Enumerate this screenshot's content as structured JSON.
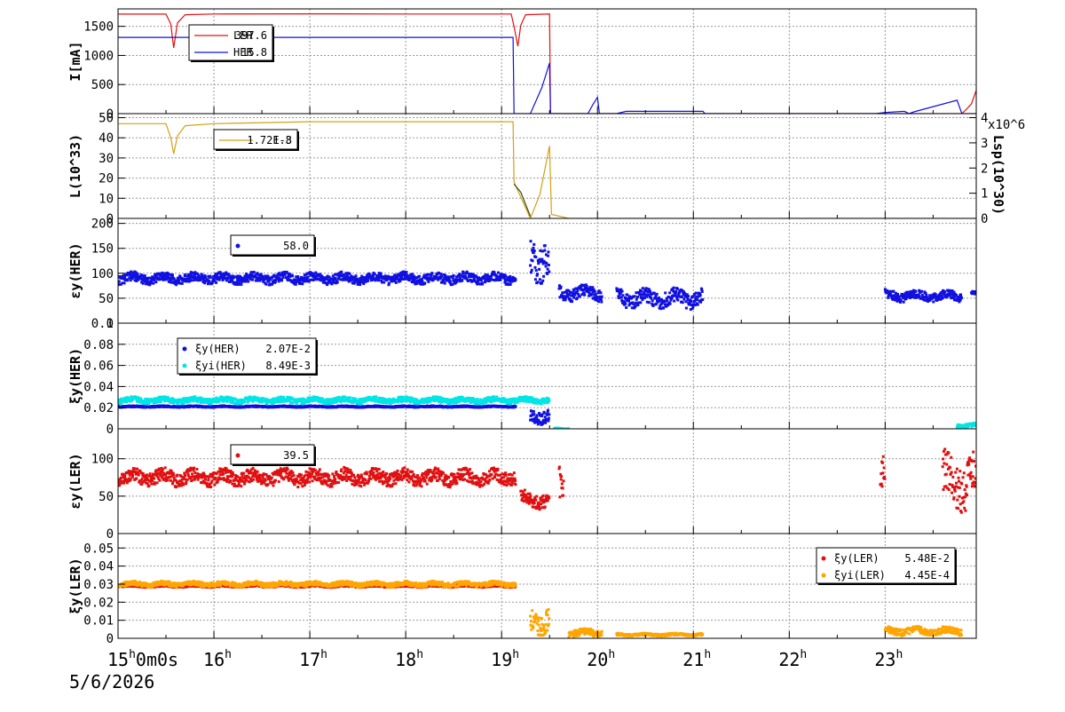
{
  "x_axis": {
    "tick_labels": [
      {
        "hour": 15,
        "label": "15",
        "suffix": "0m0s",
        "sup": "h"
      },
      {
        "hour": 16,
        "label": "16",
        "sup": "h"
      },
      {
        "hour": 17,
        "label": "17",
        "sup": "h"
      },
      {
        "hour": 18,
        "label": "18",
        "sup": "h"
      },
      {
        "hour": 19,
        "label": "19",
        "sup": "h"
      },
      {
        "hour": 20,
        "label": "20",
        "sup": "h"
      },
      {
        "hour": 21,
        "label": "21",
        "sup": "h"
      },
      {
        "hour": 22,
        "label": "22",
        "sup": "h"
      },
      {
        "hour": 23,
        "label": "23",
        "sup": "h"
      }
    ],
    "date": "5/6/2026",
    "range_hours": [
      15.0,
      23.95
    ]
  },
  "colors": {
    "red": "#e01010",
    "blue": "#1010e0",
    "gold": "#d4a017",
    "cyan": "#00e5e5",
    "orange": "#ffa500",
    "dark_green": "#2a4a10"
  },
  "chart_data": [
    {
      "type": "line",
      "ylabel": "I[mA]",
      "ylim": [
        0,
        1800
      ],
      "yticks": [
        0,
        500,
        1000,
        1500
      ],
      "grid": true,
      "legend": {
        "placement": "top-left",
        "entries": [
          {
            "name": "LER",
            "value": "397.6",
            "color": "#e01010"
          },
          {
            "name": "HER",
            "value": "15.8",
            "color": "#1010e0"
          }
        ]
      },
      "series": [
        {
          "name": "LER",
          "color": "#e01010",
          "points": [
            [
              15.0,
              1710
            ],
            [
              15.5,
              1710
            ],
            [
              15.55,
              1540
            ],
            [
              15.58,
              1130
            ],
            [
              15.62,
              1560
            ],
            [
              15.7,
              1700
            ],
            [
              16.0,
              1712
            ],
            [
              17.0,
              1714
            ],
            [
              18.0,
              1712
            ],
            [
              19.0,
              1712
            ],
            [
              19.1,
              1712
            ],
            [
              19.13,
              1500
            ],
            [
              19.17,
              1160
            ],
            [
              19.2,
              1520
            ],
            [
              19.25,
              1700
            ],
            [
              19.5,
              1712
            ],
            [
              19.51,
              0
            ],
            [
              20.0,
              0
            ],
            [
              21.0,
              0
            ],
            [
              22.0,
              0
            ],
            [
              22.95,
              0
            ],
            [
              23.8,
              0
            ],
            [
              23.85,
              80
            ],
            [
              23.9,
              170
            ],
            [
              23.95,
              400
            ]
          ]
        },
        {
          "name": "HER",
          "color": "#1010e0",
          "points": [
            [
              15.0,
              1310
            ],
            [
              19.12,
              1310
            ],
            [
              19.13,
              0
            ],
            [
              19.3,
              0
            ],
            [
              19.42,
              450
            ],
            [
              19.5,
              870
            ],
            [
              19.51,
              0
            ],
            [
              19.9,
              0
            ],
            [
              19.95,
              150
            ],
            [
              20.0,
              280
            ],
            [
              20.02,
              0
            ],
            [
              20.2,
              0
            ],
            [
              20.3,
              40
            ],
            [
              21.1,
              40
            ],
            [
              21.12,
              0
            ],
            [
              22.9,
              0
            ],
            [
              23.0,
              20
            ],
            [
              23.2,
              40
            ],
            [
              23.25,
              0
            ],
            [
              23.3,
              30
            ],
            [
              23.75,
              230
            ],
            [
              23.8,
              0
            ],
            [
              23.95,
              0
            ]
          ]
        }
      ]
    },
    {
      "type": "line",
      "ylabel": "L(10^33)",
      "ylim": [
        0,
        52
      ],
      "yticks": [
        0,
        10,
        20,
        30,
        40,
        50
      ],
      "right_axis": {
        "label": "Lsp(10^30)",
        "multiplier": "x10^6",
        "ylim": [
          0,
          4.16
        ],
        "yticks": [
          0,
          1,
          2,
          3,
          4
        ]
      },
      "grid": true,
      "legend": {
        "placement": "top-left",
        "entries": [
          {
            "name": "",
            "value": "1.72E-3",
            "overlap": "1.8",
            "color": "#d4a017"
          }
        ]
      },
      "series": [
        {
          "name": "L",
          "color": "#d4a017",
          "points": [
            [
              15.0,
              47
            ],
            [
              15.5,
              47
            ],
            [
              15.55,
              40
            ],
            [
              15.58,
              32
            ],
            [
              15.62,
              41
            ],
            [
              15.7,
              46
            ],
            [
              16.0,
              47
            ],
            [
              17.0,
              48
            ],
            [
              18.0,
              48
            ],
            [
              19.0,
              48
            ],
            [
              19.12,
              48
            ],
            [
              19.13,
              18
            ],
            [
              19.3,
              0
            ],
            [
              19.4,
              12
            ],
            [
              19.5,
              36
            ],
            [
              19.52,
              2
            ],
            [
              19.7,
              0
            ],
            [
              20.0,
              0
            ],
            [
              22.0,
              0
            ],
            [
              23.95,
              0
            ]
          ]
        },
        {
          "name": "Lsp",
          "color": "#2a4a10",
          "points": [
            [
              19.13,
              17
            ],
            [
              19.2,
              13
            ],
            [
              19.3,
              1
            ]
          ]
        }
      ]
    },
    {
      "type": "scatter",
      "ylabel": "εy(HER)",
      "ylim": [
        0,
        210
      ],
      "yticks": [
        0,
        50,
        100,
        150,
        200
      ],
      "grid": true,
      "legend": {
        "placement": "top-left",
        "entries": [
          {
            "name": "",
            "value": "58.0",
            "color": "#1010e0"
          }
        ]
      },
      "series": [
        {
          "name": "",
          "color": "#1010e0",
          "generated": true,
          "segments": [
            [
              15.0,
              19.15,
              90,
              15
            ],
            [
              19.3,
              19.5,
              130,
              60
            ],
            [
              19.6,
              20.05,
              60,
              20
            ],
            [
              20.2,
              21.1,
              50,
              25
            ],
            [
              23.0,
              23.8,
              55,
              15
            ],
            [
              23.9,
              23.95,
              60,
              5
            ]
          ]
        }
      ]
    },
    {
      "type": "scatter",
      "ylabel": "ξy(HER)",
      "ylim": [
        0,
        0.1
      ],
      "yticks": [
        0,
        0.02,
        0.04,
        0.06,
        0.08,
        0.1
      ],
      "grid": true,
      "legend": {
        "placement": "top-left",
        "entries": [
          {
            "name": "ξy(HER)",
            "value": "2.07E-2",
            "color": "#1010e0"
          },
          {
            "name": "ξyi(HER)",
            "value": "8.49E-3",
            "color": "#00e5e5"
          }
        ]
      },
      "series": [
        {
          "name": "ξy(HER)",
          "color": "#1010e0",
          "generated": true,
          "segments": [
            [
              15.0,
              19.15,
              0.021,
              0.001
            ],
            [
              19.3,
              19.5,
              0.012,
              0.01
            ]
          ]
        },
        {
          "name": "ξyi(HER)",
          "color": "#00e5e5",
          "generated": true,
          "segments": [
            [
              15.0,
              19.5,
              0.027,
              0.004
            ],
            [
              19.55,
              19.7,
              0.0,
              0.001
            ],
            [
              23.75,
              23.95,
              0.003,
              0.003
            ]
          ]
        }
      ]
    },
    {
      "type": "scatter",
      "ylabel": "εy(LER)",
      "ylim": [
        0,
        140
      ],
      "yticks": [
        0,
        50,
        100
      ],
      "grid": true,
      "legend": {
        "placement": "top-left",
        "entries": [
          {
            "name": "",
            "value": "39.5",
            "color": "#e01010"
          }
        ]
      },
      "series": [
        {
          "name": "",
          "color": "#e01010",
          "generated": true,
          "segments": [
            [
              15.0,
              19.15,
              75,
              15
            ],
            [
              19.2,
              19.5,
              45,
              15
            ],
            [
              19.6,
              19.65,
              60,
              40
            ],
            [
              22.95,
              23.0,
              70,
              40
            ],
            [
              23.6,
              23.95,
              70,
              50
            ]
          ]
        }
      ]
    },
    {
      "type": "scatter",
      "ylabel": "ξy(LER)",
      "ylim": [
        0,
        0.058
      ],
      "yticks": [
        0,
        0.01,
        0.02,
        0.03,
        0.04,
        0.05
      ],
      "grid": true,
      "legend": {
        "placement": "top-right",
        "entries": [
          {
            "name": "ξy(LER)",
            "value": "5.48E-2",
            "color": "#e01010"
          },
          {
            "name": "ξyi(LER)",
            "value": "4.45E-4",
            "color": "#ffa500"
          }
        ]
      },
      "series": [
        {
          "name": "ξy(LER)",
          "color": "#e01010",
          "generated": true,
          "segments": [
            [
              15.0,
              19.15,
              0.029,
              0.001
            ]
          ]
        },
        {
          "name": "ξyi(LER)",
          "color": "#ffa500",
          "generated": true,
          "segments": [
            [
              15.0,
              19.15,
              0.03,
              0.002
            ],
            [
              19.3,
              19.5,
              0.01,
              0.01
            ],
            [
              19.7,
              20.05,
              0.003,
              0.003
            ],
            [
              20.2,
              21.1,
              0.002,
              0.001
            ],
            [
              23.0,
              23.8,
              0.004,
              0.003
            ]
          ]
        }
      ]
    }
  ]
}
